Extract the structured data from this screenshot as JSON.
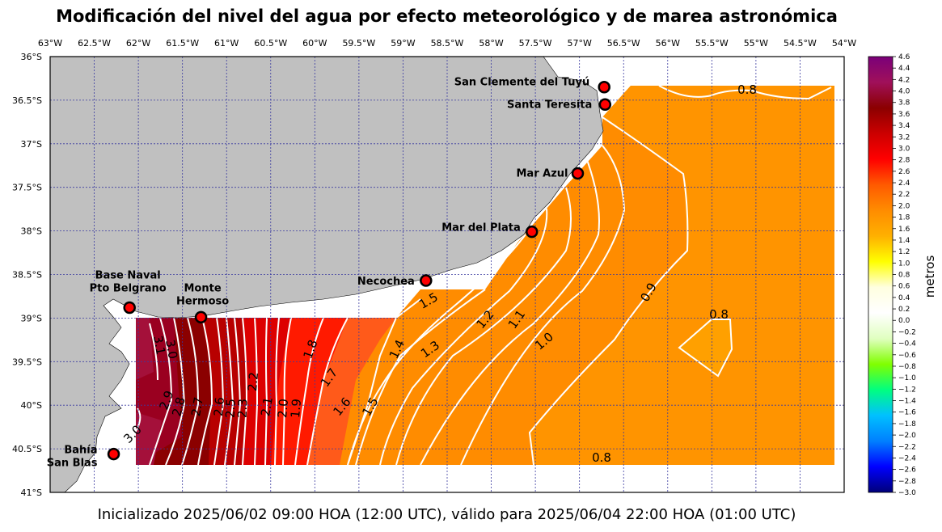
{
  "title": "Modificación del nivel del agua por efecto meteorológico y de marea astronómica",
  "footer": "Inicializado 2025/06/02 09:00 HOA (12:00 UTC), válido para 2025/06/04 22:00 HOA (01:00 UTC)",
  "map": {
    "lon_range": [
      -63,
      -54
    ],
    "lat_range": [
      -41,
      -36
    ],
    "lon_ticks": [
      "63°W",
      "62.5°W",
      "62°W",
      "61.5°W",
      "61°W",
      "60.5°W",
      "60°W",
      "59.5°W",
      "59°W",
      "58.5°W",
      "58°W",
      "57.5°W",
      "57°W",
      "56.5°W",
      "56°W",
      "55.5°W",
      "55°W",
      "54.5°W",
      "54°W"
    ],
    "lat_ticks": [
      "36°S",
      "36.5°S",
      "37°S",
      "37.5°S",
      "38°S",
      "38.5°S",
      "39°S",
      "39.5°S",
      "40°S",
      "40.5°S",
      "41°S"
    ],
    "land_color": "#c0c0c0",
    "grid_color": "#3a3aa0"
  },
  "stations": [
    {
      "name": "San Clemente del Tuyú",
      "lon": -56.72,
      "lat": -36.35
    },
    {
      "name": "Santa Teresita",
      "lon": -56.71,
      "lat": -36.55
    },
    {
      "name": "Mar Azul",
      "lon": -57.02,
      "lat": -37.34
    },
    {
      "name": "Mar del Plata",
      "lon": -57.54,
      "lat": -38.01
    },
    {
      "name": "Necochea",
      "lon": -58.74,
      "lat": -38.57
    },
    {
      "name": "Base Naval\nPto Belgrano",
      "lon": -62.1,
      "lat": -38.88
    },
    {
      "name": "Monte\nHermoso",
      "lon": -61.29,
      "lat": -38.99
    },
    {
      "name": "Bahía\nSan Blas",
      "lon": -62.28,
      "lat": -40.56
    }
  ],
  "contour_labels": [
    "0.8",
    "0.8",
    "0.8",
    "0.9",
    "1.0",
    "1.1",
    "1.2",
    "1.3",
    "1.4",
    "1.5",
    "1.5",
    "1.6",
    "1.7",
    "1.8",
    "1.9",
    "2.0",
    "2.1",
    "2.2",
    "2.3",
    "2.5",
    "2.6",
    "2.7",
    "2.8",
    "2.9",
    "3.0",
    "3.0",
    "3.1"
  ],
  "colorbar": {
    "label": "metros",
    "ticks": [
      "4.6",
      "4.4",
      "4.2",
      "4.0",
      "3.8",
      "3.6",
      "3.4",
      "3.2",
      "3.0",
      "2.8",
      "2.6",
      "2.4",
      "2.2",
      "2.0",
      "1.8",
      "1.6",
      "1.4",
      "1.2",
      "1.0",
      "0.8",
      "0.6",
      "0.4",
      "0.2",
      "0.0",
      "−0.2",
      "−0.4",
      "−0.6",
      "−0.8",
      "−1.0",
      "−1.2",
      "−1.4",
      "−1.6",
      "−1.8",
      "−2.0",
      "−2.2",
      "−2.4",
      "−2.6",
      "−2.8",
      "−3.0"
    ],
    "stops": [
      "#7a007a",
      "#a0105a",
      "#8b0000",
      "#cc0000",
      "#ff0000",
      "#ff5a00",
      "#ff8c00",
      "#ffb000",
      "#ffff00",
      "#ffffe0",
      "#ffffff",
      "#e0ffc0",
      "#80ff00",
      "#00ff80",
      "#00c0ff",
      "#0080ff",
      "#0000ff",
      "#00007a"
    ]
  }
}
